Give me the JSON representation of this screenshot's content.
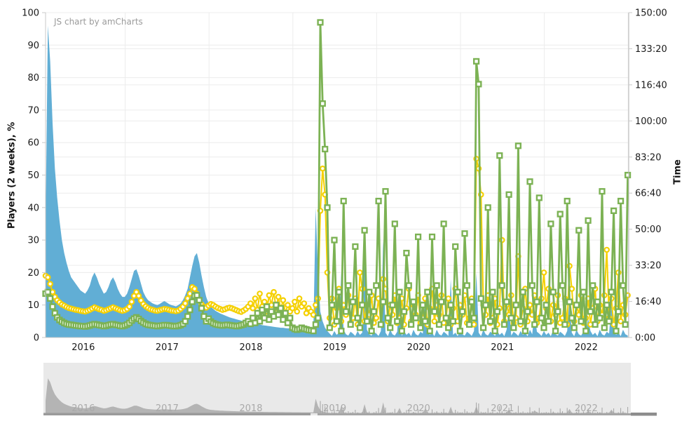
{
  "chart": {
    "credit": "JS chart by amCharts",
    "left_axis": {
      "title": "Players (2 weeks), %",
      "ticks": [
        "0",
        "10",
        "20",
        "30",
        "40",
        "50",
        "60",
        "70",
        "80",
        "90",
        "100"
      ]
    },
    "right_axis": {
      "title": "Time",
      "ticks": [
        "0:00",
        "16:40",
        "33:20",
        "50:00",
        "66:40",
        "83:20",
        "100:00",
        "116:40",
        "133:20",
        "150:00"
      ]
    },
    "x_axis": {
      "years": [
        "2016",
        "2017",
        "2018",
        "2019",
        "2020",
        "2021",
        "2022"
      ]
    },
    "navigator": {
      "years": [
        "2016",
        "2017",
        "2018",
        "2019",
        "2020",
        "2021",
        "2022"
      ]
    },
    "colors": {
      "blue": "#61aed5",
      "yellow": "#f5d000",
      "green": "#7cb254",
      "grid": "#ececec",
      "axis_line": "#c9c9c9",
      "nav_bg": "#e9e9e9",
      "nav_area": "#b4b4b4",
      "nav_bar": "#9a9a9a",
      "nav_label": "#a9a9a9"
    }
  },
  "chart_data": {
    "type": "area+line",
    "x_unit": "year",
    "x_start": 2016.05,
    "x_step": 0.027778,
    "left_axis": {
      "label": "Players (2 weeks), %",
      "min": 0,
      "max": 100,
      "tick_step": 10
    },
    "right_axis": {
      "label": "Time",
      "min": "0:00",
      "max": "150:00",
      "tick_interval": "16:40"
    },
    "grid": true,
    "value_scale": "values are plotted on the shared 0-100 left-axis pixel scale; right axis 0:00-150:00 spans the same plot height",
    "series": [
      {
        "name": "players-2-weeks-pct",
        "type": "area",
        "bullet": "none",
        "color": "#61aed5",
        "values": [
          34,
          96,
          85,
          66,
          52,
          43,
          36,
          30,
          26,
          23,
          20.5,
          18.5,
          17.5,
          16.5,
          15.5,
          14.5,
          14,
          13.5,
          14.5,
          16,
          18.5,
          20,
          18.5,
          16.5,
          15,
          13.5,
          14,
          15.5,
          17.5,
          18.5,
          17,
          15,
          13.5,
          12.5,
          12.5,
          13.5,
          15.5,
          18,
          20.5,
          21,
          19,
          16.5,
          14,
          12.5,
          11.5,
          11,
          10.5,
          10.2,
          10,
          10.3,
          10.8,
          11.2,
          10.8,
          10.3,
          10,
          9.8,
          9.6,
          10,
          10.5,
          11.5,
          13,
          15,
          18.5,
          22,
          25,
          26,
          23,
          19,
          15.5,
          12.5,
          10.5,
          9.5,
          8.8,
          8.2,
          7.8,
          7.4,
          7.1,
          6.8,
          6.5,
          6.2,
          6,
          5.8,
          5.6,
          5.4,
          5.2,
          5,
          4.8,
          4.7,
          4.5,
          4.4,
          4.2,
          4.1,
          4,
          3.8,
          3.7,
          3.6,
          3.5,
          3.4,
          3.3,
          3.2,
          3.1,
          3,
          3,
          2.9,
          2.8,
          2.8,
          2.7,
          2.7,
          2.6,
          2.6,
          2.5,
          2.5,
          2.4,
          2.4,
          2.3,
          2.3,
          40,
          20,
          8,
          5,
          3,
          2,
          1.2,
          0.5,
          2,
          0.8,
          1.5,
          20,
          2.4,
          1,
          0.6,
          1.8,
          1.2,
          0.5,
          2,
          0.8,
          1.5,
          25,
          2.4,
          1,
          0.6,
          1.8,
          1.2,
          0.5,
          2,
          30,
          1.5,
          0.4,
          2.4,
          1,
          0.6,
          1.8,
          15,
          0.5,
          2,
          0.8,
          1.5,
          0.4,
          2.4,
          1,
          0.6,
          1.8,
          1.2,
          12,
          2,
          0.8,
          1.5,
          0.4,
          2.4,
          1,
          0.6,
          1.8,
          1.2,
          0.5,
          18,
          0.8,
          1.5,
          0.4,
          2.4,
          1,
          0.6,
          1.8,
          1.2,
          0.5,
          2,
          20,
          1.5,
          0.4,
          2.4,
          1,
          0.6,
          1.8,
          1.2,
          0.5,
          2,
          0.8,
          1.5,
          0.4,
          2.4,
          10,
          0.6,
          1.8,
          1.2,
          0.5,
          2,
          0.8,
          1.5,
          0.4,
          2.4,
          1,
          8,
          1.8,
          1.2,
          0.5,
          2,
          0.8,
          1.5,
          0.4,
          2.4,
          1,
          0.6,
          1.8,
          1.2,
          0.5,
          2,
          12,
          1.5,
          0.4,
          2.4,
          1,
          0.6,
          1.8,
          1.2,
          6,
          2,
          0.8,
          1.5,
          0.4,
          2.4,
          1,
          0.6,
          1.8,
          1.2,
          10,
          2,
          0.8,
          1.5,
          0.4,
          2.4,
          1,
          0.6
        ]
      },
      {
        "name": "time-yellow",
        "type": "line",
        "bullet": "circle",
        "color": "#f5d000",
        "values": [
          19,
          18.5,
          16.5,
          14,
          12.5,
          11.5,
          10.8,
          10.2,
          9.8,
          9.4,
          9.1,
          8.9,
          8.7,
          8.5,
          8.4,
          8.2,
          8.1,
          8,
          8.2,
          8.5,
          8.9,
          9.3,
          9,
          8.7,
          8.5,
          8.2,
          8.4,
          8.7,
          9,
          9.3,
          9,
          8.7,
          8.4,
          8.2,
          8.4,
          8.8,
          9.5,
          11,
          12.8,
          14,
          12.8,
          11.4,
          10.3,
          9.6,
          9.1,
          8.7,
          8.5,
          8.3,
          8.2,
          8.4,
          8.6,
          8.8,
          8.7,
          8.5,
          8.3,
          8.2,
          8.1,
          8.3,
          8.8,
          9.5,
          10.5,
          12,
          13.5,
          15.5,
          15,
          13.5,
          11.5,
          10.2,
          9.5,
          9.2,
          9.8,
          10.3,
          10,
          9.5,
          9.1,
          8.8,
          8.5,
          8.7,
          9,
          9.2,
          9,
          8.7,
          8.4,
          8.1,
          7.9,
          8.3,
          8.8,
          9.5,
          10.5,
          9,
          12,
          8.5,
          13.5,
          9.5,
          11,
          8,
          13,
          10,
          14,
          9,
          12.5,
          8.5,
          11.5,
          7.5,
          10,
          8,
          9,
          11,
          8,
          12,
          9.5,
          10.5,
          7.5,
          9,
          8,
          7,
          10,
          12,
          39,
          52,
          44,
          20,
          6,
          12,
          4,
          9,
          15,
          5,
          10,
          7,
          13,
          4.5,
          6,
          12,
          4,
          20,
          15,
          5,
          10,
          7,
          13,
          4.5,
          6,
          12,
          4,
          18,
          15,
          5,
          10,
          7,
          13,
          4.5,
          6,
          12,
          4,
          9,
          15,
          5,
          10,
          7,
          13,
          4.5,
          6,
          12,
          4,
          9,
          15,
          5,
          10,
          7,
          13,
          4.5,
          6,
          12,
          4,
          9,
          15,
          5,
          10,
          7,
          13,
          4.5,
          6,
          12,
          4,
          55,
          52,
          44,
          10,
          7,
          13,
          4.5,
          6,
          12,
          4,
          9,
          30,
          5,
          10,
          7,
          13,
          4.5,
          6,
          25,
          4,
          9,
          15,
          5,
          10,
          7,
          13,
          4.5,
          6,
          12,
          20,
          9,
          15,
          5,
          10,
          7,
          13,
          4.5,
          6,
          12,
          4,
          22,
          15,
          5,
          10,
          7,
          13,
          4.5,
          6,
          12,
          4,
          9,
          15,
          5,
          10,
          7,
          13,
          27,
          6,
          12,
          4,
          9,
          20,
          5,
          10,
          7,
          13
        ]
      },
      {
        "name": "time-green",
        "type": "line",
        "bullet": "square",
        "color": "#7cb254",
        "values": [
          13.5,
          14,
          12,
          9.5,
          7.5,
          6.2,
          5.4,
          4.9,
          4.5,
          4.2,
          4,
          3.9,
          3.8,
          3.7,
          3.6,
          3.5,
          3.5,
          3.4,
          3.5,
          3.7,
          3.9,
          4.1,
          4,
          3.8,
          3.7,
          3.5,
          3.6,
          3.8,
          4,
          4.1,
          3.9,
          3.8,
          3.6,
          3.5,
          3.7,
          4,
          4.5,
          5.2,
          5.8,
          6.2,
          5.7,
          5.1,
          4.6,
          4.2,
          3.9,
          3.8,
          3.7,
          3.6,
          3.5,
          3.6,
          3.7,
          3.8,
          3.8,
          3.7,
          3.6,
          3.5,
          3.5,
          3.6,
          3.8,
          4.2,
          5,
          6.5,
          8.5,
          11,
          12.8,
          13,
          11.5,
          9,
          6.5,
          5,
          5.8,
          4.9,
          4.4,
          4.1,
          3.9,
          3.8,
          3.7,
          3.8,
          3.9,
          3.8,
          3.7,
          3.6,
          3.5,
          3.6,
          3.8,
          4,
          4.5,
          5,
          4.2,
          6,
          4.5,
          7.5,
          5,
          8.5,
          6,
          9.5,
          5.5,
          8,
          6.5,
          10,
          7,
          9,
          5.5,
          7.5,
          4.5,
          6,
          3,
          2.6,
          2.4,
          2.6,
          3,
          2.7,
          2.5,
          2.3,
          2.2,
          2,
          4,
          6,
          97,
          72,
          58,
          40,
          3,
          10,
          30,
          5,
          14,
          2,
          42,
          8,
          16,
          4,
          11,
          28,
          6,
          3,
          10,
          33,
          5,
          14,
          2,
          8,
          16,
          42,
          4,
          11,
          45,
          6,
          3,
          10,
          35,
          5,
          14,
          2,
          8,
          26,
          16,
          4,
          11,
          6,
          31,
          3,
          10,
          5,
          14,
          2,
          31,
          8,
          16,
          4,
          11,
          35,
          6,
          3,
          10,
          5,
          28,
          14,
          2,
          8,
          32,
          16,
          4,
          11,
          6,
          85,
          78,
          12,
          3,
          10,
          40,
          5,
          14,
          2,
          8,
          56,
          16,
          4,
          11,
          44,
          6,
          3,
          10,
          59,
          5,
          14,
          2,
          8,
          48,
          16,
          4,
          11,
          43,
          6,
          3,
          10,
          5,
          35,
          14,
          2,
          8,
          38,
          16,
          4,
          42,
          11,
          6,
          3,
          10,
          33,
          5,
          14,
          2,
          36,
          8,
          16,
          4,
          11,
          6,
          45,
          3,
          10,
          5,
          14,
          39,
          2,
          8,
          42,
          16,
          4,
          50
        ]
      }
    ]
  }
}
